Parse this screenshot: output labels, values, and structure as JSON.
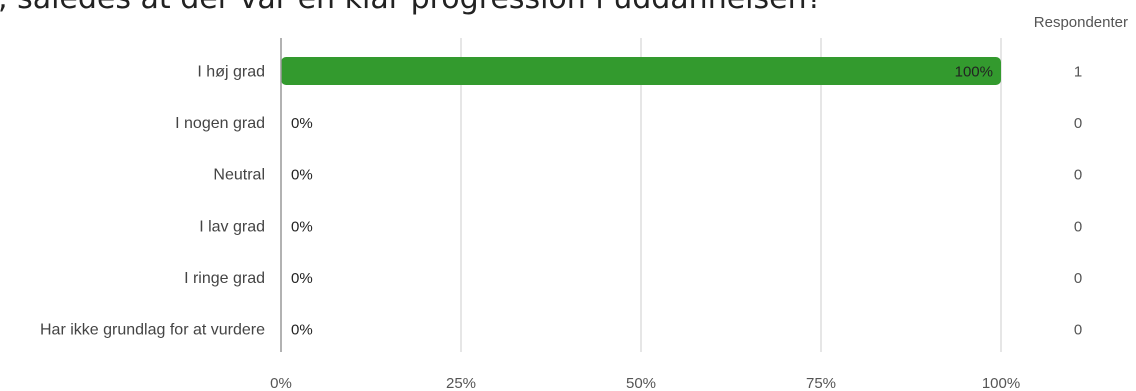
{
  "question": {
    "title": ", således at der var en klar progression i uddannelsen?"
  },
  "respondents_header": "Respondenter",
  "colors": {
    "bar": "#339a2e",
    "grid": "#cccccc",
    "axis": "#999999"
  },
  "chart_data": {
    "type": "bar",
    "orientation": "horizontal",
    "categories": [
      "I høj grad",
      "I nogen grad",
      "Neutral",
      "I lav grad",
      "I ringe grad",
      "Har ikke grundlag for at vurdere"
    ],
    "values": [
      100,
      0,
      0,
      0,
      0,
      0
    ],
    "value_labels": [
      "100%",
      "0%",
      "0%",
      "0%",
      "0%",
      "0%"
    ],
    "respondents": [
      "1",
      "0",
      "0",
      "0",
      "0",
      "0"
    ],
    "x_ticks": [
      "0%",
      "25%",
      "50%",
      "75%",
      "100%"
    ],
    "xlim": [
      0,
      100
    ],
    "grid": true
  }
}
